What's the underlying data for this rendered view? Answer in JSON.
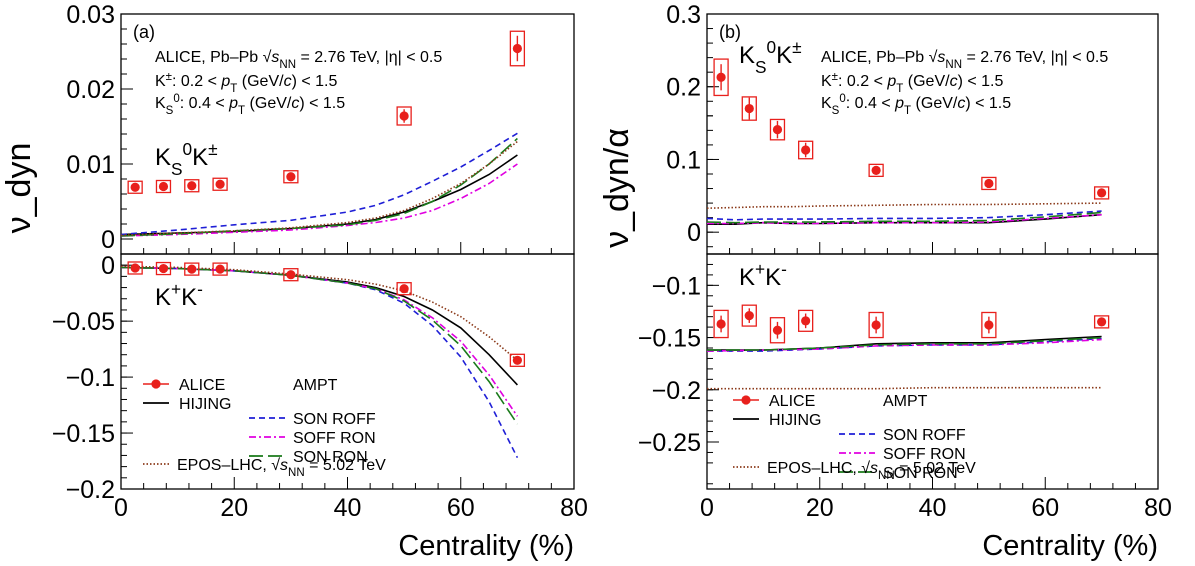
{
  "chart_data": [
    {
      "type": "scatter",
      "panel_label": "(a)",
      "xlabel": "Centrality (%)",
      "ylabel": "ν_dyn",
      "xlim": [
        0,
        80
      ],
      "x_ticks": [
        "0",
        "20",
        "40",
        "60",
        "80"
      ],
      "subplots": [
        {
          "id": "top",
          "ylim": [
            -0.002,
            0.03
          ],
          "y_ticks": [
            "0",
            "0.01",
            "0.02",
            "0.03"
          ],
          "pair_label": "K_S^0K^±",
          "header_lines": [
            "ALICE, Pb–Pb √s_NN = 2.76 TeV, |η| < 0.5",
            "K±: 0.2 < p_T (GeV/c) < 1.5",
            "K_S^0: 0.4 < p_T (GeV/c) < 1.5"
          ],
          "alice": {
            "x": [
              2.5,
              7.5,
              12.5,
              17.5,
              30,
              50,
              70
            ],
            "y": [
              0.0069,
              0.007,
              0.0071,
              0.0073,
              0.0083,
              0.0164,
              0.0254
            ],
            "stat_err": [
              0.0004,
              0.0004,
              0.0004,
              0.0004,
              0.0005,
              0.0009,
              0.0017
            ],
            "sys_err": [
              0.0005,
              0.0005,
              0.0005,
              0.0005,
              0.0006,
              0.0012,
              0.0023
            ]
          },
          "models": [
            {
              "key": "hijing",
              "x": [
                0,
                10,
                20,
                30,
                40,
                45,
                50,
                55,
                60,
                65,
                70
              ],
              "y": [
                0.0006,
                0.0008,
                0.001,
                0.0014,
                0.002,
                0.0026,
                0.0036,
                0.005,
                0.0066,
                0.0086,
                0.0112
              ]
            },
            {
              "key": "son_roff",
              "x": [
                0,
                10,
                20,
                30,
                40,
                45,
                50,
                55,
                60,
                65,
                70
              ],
              "y": [
                0.0006,
                0.0012,
                0.0019,
                0.0025,
                0.0036,
                0.0045,
                0.0059,
                0.0077,
                0.0096,
                0.0118,
                0.0141
              ]
            },
            {
              "key": "soff_ron",
              "x": [
                0,
                10,
                20,
                30,
                40,
                45,
                50,
                55,
                60,
                65,
                70
              ],
              "y": [
                0.0004,
                0.0006,
                0.0009,
                0.0012,
                0.0018,
                0.0022,
                0.0028,
                0.0038,
                0.0054,
                0.0074,
                0.01
              ]
            },
            {
              "key": "son_ron",
              "x": [
                0,
                10,
                20,
                30,
                40,
                45,
                50,
                55,
                60,
                65,
                70
              ],
              "y": [
                0.0004,
                0.0007,
                0.0011,
                0.0014,
                0.0019,
                0.0025,
                0.0034,
                0.005,
                0.0072,
                0.01,
                0.0134
              ]
            },
            {
              "key": "epos",
              "x": [
                0,
                10,
                20,
                30,
                40,
                45,
                50,
                55,
                60,
                65,
                70
              ],
              "y": [
                0.0005,
                0.0008,
                0.0011,
                0.0015,
                0.0022,
                0.0028,
                0.0038,
                0.0054,
                0.0074,
                0.01,
                0.013
              ]
            }
          ]
        },
        {
          "id": "bottom",
          "ylim": [
            -0.2,
            0.01
          ],
          "y_ticks": [
            "0",
            "−0.05",
            "−0.1",
            "−0.15",
            "−0.2"
          ],
          "pair_label": "K+K-",
          "alice": {
            "x": [
              2.5,
              7.5,
              12.5,
              17.5,
              30,
              50,
              70
            ],
            "y": [
              -0.0025,
              -0.003,
              -0.0035,
              -0.0035,
              -0.0085,
              -0.021,
              -0.085
            ],
            "stat_err": [
              0.0015,
              0.0015,
              0.0015,
              0.0015,
              0.002,
              0.0015,
              0.002
            ],
            "sys_err": [
              0.002,
              0.002,
              0.002,
              0.002,
              0.003,
              0.002,
              0.003
            ]
          },
          "models": [
            {
              "key": "hijing",
              "x": [
                0,
                10,
                20,
                30,
                40,
                45,
                50,
                55,
                60,
                65,
                70
              ],
              "y": [
                -0.002,
                -0.003,
                -0.005,
                -0.009,
                -0.015,
                -0.02,
                -0.028,
                -0.04,
                -0.056,
                -0.08,
                -0.107
              ]
            },
            {
              "key": "son_roff",
              "x": [
                0,
                10,
                20,
                30,
                40,
                45,
                50,
                55,
                60,
                65,
                70
              ],
              "y": [
                -0.002,
                -0.003,
                -0.005,
                -0.009,
                -0.016,
                -0.022,
                -0.034,
                -0.054,
                -0.082,
                -0.122,
                -0.172
              ]
            },
            {
              "key": "soff_ron",
              "x": [
                0,
                10,
                20,
                30,
                40,
                45,
                50,
                55,
                60,
                65,
                70
              ],
              "y": [
                -0.002,
                -0.003,
                -0.005,
                -0.009,
                -0.016,
                -0.021,
                -0.031,
                -0.047,
                -0.068,
                -0.098,
                -0.135
              ]
            },
            {
              "key": "son_ron",
              "x": [
                0,
                10,
                20,
                30,
                40,
                45,
                50,
                55,
                60,
                65,
                70
              ],
              "y": [
                -0.002,
                -0.003,
                -0.005,
                -0.009,
                -0.016,
                -0.021,
                -0.032,
                -0.049,
                -0.072,
                -0.104,
                -0.142
              ]
            },
            {
              "key": "epos",
              "x": [
                0,
                10,
                20,
                30,
                40,
                45,
                50,
                55,
                60,
                65,
                70
              ],
              "y": [
                -0.001,
                -0.002,
                -0.004,
                -0.008,
                -0.013,
                -0.017,
                -0.023,
                -0.033,
                -0.046,
                -0.064,
                -0.085
              ]
            }
          ]
        }
      ],
      "legend": {
        "alice": "ALICE",
        "hijing": "HIJING",
        "ampt_header": "AMPT",
        "son_roff": "SON ROFF",
        "soff_ron": "SOFF RON",
        "son_ron": "SON RON",
        "epos": "EPOS–LHC, √s_NN = 5.02 TeV"
      }
    },
    {
      "type": "scatter",
      "panel_label": "(b)",
      "xlabel": "Centrality (%)",
      "ylabel": "ν_dyn/α",
      "xlim": [
        0,
        80
      ],
      "x_ticks": [
        "0",
        "20",
        "40",
        "60",
        "80"
      ],
      "subplots": [
        {
          "id": "top",
          "ylim": [
            -0.03,
            0.3
          ],
          "y_ticks": [
            "0",
            "0.1",
            "0.2",
            "0.3"
          ],
          "pair_label": "K_S^0K^±",
          "header_lines": [
            "ALICE, Pb–Pb √s_NN = 2.76 TeV, |η| < 0.5",
            "K±: 0.2 < p_T (GeV/c) < 1.5",
            "K_S^0: 0.4 < p_T (GeV/c) < 1.5"
          ],
          "alice": {
            "x": [
              2.5,
              7.5,
              12.5,
              17.5,
              30,
              50,
              70
            ],
            "y": [
              0.213,
              0.17,
              0.141,
              0.113,
              0.085,
              0.067,
              0.054
            ],
            "stat_err": [
              0.018,
              0.015,
              0.012,
              0.01,
              0.006,
              0.004,
              0.004
            ],
            "sys_err": [
              0.025,
              0.016,
              0.014,
              0.012,
              0.008,
              0.006,
              0.006
            ]
          },
          "models": [
            {
              "key": "hijing",
              "x": [
                0,
                5,
                10,
                15,
                20,
                30,
                40,
                50,
                60,
                70
              ],
              "y": [
                0.011,
                0.011,
                0.013,
                0.012,
                0.012,
                0.013,
                0.013,
                0.013,
                0.018,
                0.024
              ]
            },
            {
              "key": "son_roff",
              "x": [
                0,
                5,
                10,
                15,
                20,
                30,
                40,
                50,
                60,
                70
              ],
              "y": [
                0.019,
                0.017,
                0.018,
                0.018,
                0.018,
                0.019,
                0.019,
                0.02,
                0.024,
                0.029
              ]
            },
            {
              "key": "soff_ron",
              "x": [
                0,
                5,
                10,
                15,
                20,
                30,
                40,
                50,
                60,
                70
              ],
              "y": [
                0.012,
                0.012,
                0.013,
                0.012,
                0.012,
                0.013,
                0.013,
                0.014,
                0.019,
                0.024
              ]
            },
            {
              "key": "son_ron",
              "x": [
                0,
                5,
                10,
                15,
                20,
                30,
                40,
                50,
                60,
                70
              ],
              "y": [
                0.014,
                0.013,
                0.014,
                0.014,
                0.014,
                0.015,
                0.015,
                0.016,
                0.021,
                0.027
              ]
            },
            {
              "key": "epos",
              "x": [
                0,
                5,
                10,
                15,
                20,
                30,
                40,
                50,
                60,
                70
              ],
              "y": [
                0.033,
                0.034,
                0.035,
                0.035,
                0.036,
                0.037,
                0.038,
                0.038,
                0.039,
                0.04
              ]
            }
          ]
        },
        {
          "id": "bottom",
          "ylim": [
            -0.295,
            -0.07
          ],
          "y_ticks": [
            "−0.1",
            "−0.15",
            "−0.2",
            "−0.25"
          ],
          "pair_label": "K+K-",
          "alice": {
            "x": [
              2.5,
              7.5,
              12.5,
              17.5,
              30,
              50,
              70
            ],
            "y": [
              -0.137,
              -0.129,
              -0.143,
              -0.134,
              -0.138,
              -0.138,
              -0.135
            ],
            "stat_err": [
              0.008,
              0.007,
              0.008,
              0.007,
              0.008,
              0.008,
              0.003
            ],
            "sys_err": [
              0.013,
              0.01,
              0.012,
              0.01,
              0.012,
              0.012,
              0.004
            ]
          },
          "models": [
            {
              "key": "hijing",
              "x": [
                0,
                10,
                20,
                30,
                40,
                50,
                60,
                70
              ],
              "y": [
                -0.162,
                -0.162,
                -0.16,
                -0.156,
                -0.155,
                -0.155,
                -0.152,
                -0.149
              ]
            },
            {
              "key": "son_roff",
              "x": [
                0,
                10,
                20,
                30,
                40,
                50,
                60,
                70
              ],
              "y": [
                -0.163,
                -0.163,
                -0.161,
                -0.158,
                -0.157,
                -0.157,
                -0.154,
                -0.151
              ]
            },
            {
              "key": "soff_ron",
              "x": [
                0,
                10,
                20,
                30,
                40,
                50,
                60,
                70
              ],
              "y": [
                -0.163,
                -0.162,
                -0.161,
                -0.158,
                -0.157,
                -0.157,
                -0.155,
                -0.152
              ]
            },
            {
              "key": "son_ron",
              "x": [
                0,
                10,
                20,
                30,
                40,
                50,
                60,
                70
              ],
              "y": [
                -0.162,
                -0.162,
                -0.16,
                -0.157,
                -0.156,
                -0.156,
                -0.153,
                -0.15
              ]
            },
            {
              "key": "epos",
              "x": [
                0,
                10,
                20,
                30,
                40,
                50,
                60,
                70
              ],
              "y": [
                -0.199,
                -0.199,
                -0.199,
                -0.199,
                -0.198,
                -0.198,
                -0.198,
                -0.198
              ]
            }
          ]
        }
      ],
      "legend": {
        "alice": "ALICE",
        "hijing": "HIJING",
        "ampt_header": "AMPT",
        "son_roff": "SON ROFF",
        "soff_ron": "SOFF RON",
        "son_ron": "SON RON",
        "epos": "EPOS–LHC, √s_NN = 5.02 TeV"
      }
    }
  ],
  "styles": {
    "hijing": {
      "color": "#000000",
      "dash": ""
    },
    "son_roff": {
      "color": "#1f1fd6",
      "dash": "6,4"
    },
    "soff_ron": {
      "color": "#e000e0",
      "dash": "7,3,2,3"
    },
    "son_ron": {
      "color": "#1a7a1a",
      "dash": "14,5"
    },
    "epos": {
      "color": "#8b3a1a",
      "dash": "1.5,2"
    },
    "alice": {
      "color": "#e8201c"
    }
  }
}
